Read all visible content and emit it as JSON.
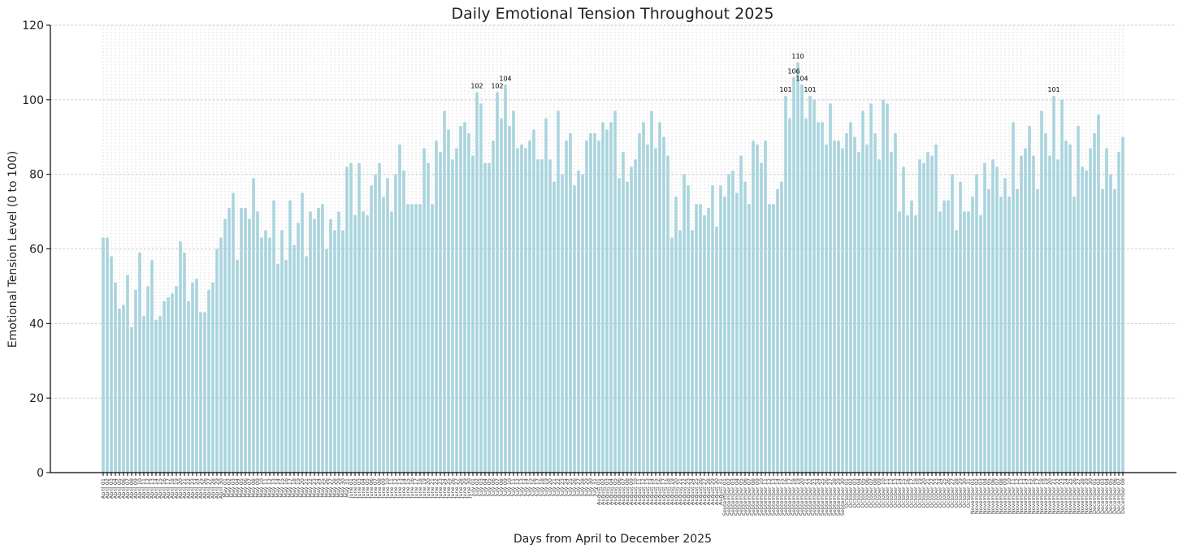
{
  "chart_data": {
    "type": "bar",
    "title": "Daily Emotional Tension Throughout 2025",
    "xlabel": "Days from April to December 2025",
    "ylabel": "Emotional Tension Level (0 to 100)",
    "ylim": [
      0,
      120
    ],
    "yticks": [
      0,
      20,
      40,
      60,
      80,
      100,
      120
    ],
    "grid": true,
    "start_date": "2025-04-01",
    "labeled_values_above": 100,
    "values": [
      63,
      63,
      58,
      51,
      44,
      45,
      53,
      39,
      49,
      59,
      42,
      50,
      57,
      41,
      42,
      46,
      47,
      48,
      50,
      62,
      59,
      46,
      51,
      52,
      43,
      43,
      49,
      51,
      60,
      63,
      68,
      71,
      75,
      57,
      71,
      71,
      68,
      79,
      70,
      63,
      65,
      63,
      73,
      56,
      65,
      57,
      73,
      61,
      67,
      75,
      58,
      70,
      68,
      71,
      72,
      60,
      68,
      65,
      70,
      65,
      82,
      83,
      69,
      83,
      70,
      69,
      77,
      80,
      83,
      74,
      79,
      70,
      80,
      88,
      81,
      72,
      72,
      72,
      72,
      87,
      83,
      72,
      89,
      86,
      97,
      92,
      84,
      87,
      93,
      94,
      91,
      85,
      102,
      99,
      83,
      83,
      89,
      102,
      95,
      104,
      93,
      97,
      87,
      88,
      87,
      89,
      92,
      84,
      84,
      95,
      84,
      78,
      97,
      80,
      89,
      91,
      77,
      81,
      80,
      89,
      91,
      91,
      89,
      94,
      92,
      94,
      97,
      79,
      86,
      78,
      82,
      84,
      91,
      94,
      88,
      97,
      87,
      94,
      90,
      85,
      63,
      74,
      65,
      80,
      77,
      65,
      72,
      72,
      69,
      71,
      77,
      66,
      77,
      74,
      80,
      81,
      75,
      85,
      78,
      72,
      89,
      88,
      83,
      89,
      72,
      72,
      76,
      78,
      101,
      95,
      106,
      110,
      104,
      95,
      101,
      100,
      94,
      94,
      88,
      99,
      89,
      89,
      87,
      91,
      94,
      90,
      86,
      97,
      88,
      99,
      91,
      84,
      100,
      99,
      86,
      91,
      70,
      82,
      69,
      73,
      69,
      84,
      83,
      86,
      85,
      88,
      70,
      73,
      73,
      80,
      65,
      78,
      70,
      70,
      74,
      80,
      69,
      83,
      76,
      84,
      82,
      74,
      79,
      74,
      94,
      76,
      85,
      87,
      93,
      85,
      76,
      97,
      91,
      85,
      101,
      84,
      100,
      89,
      88,
      74,
      93,
      82,
      81,
      87,
      91,
      96,
      76,
      87,
      80,
      76,
      86,
      90
    ]
  }
}
